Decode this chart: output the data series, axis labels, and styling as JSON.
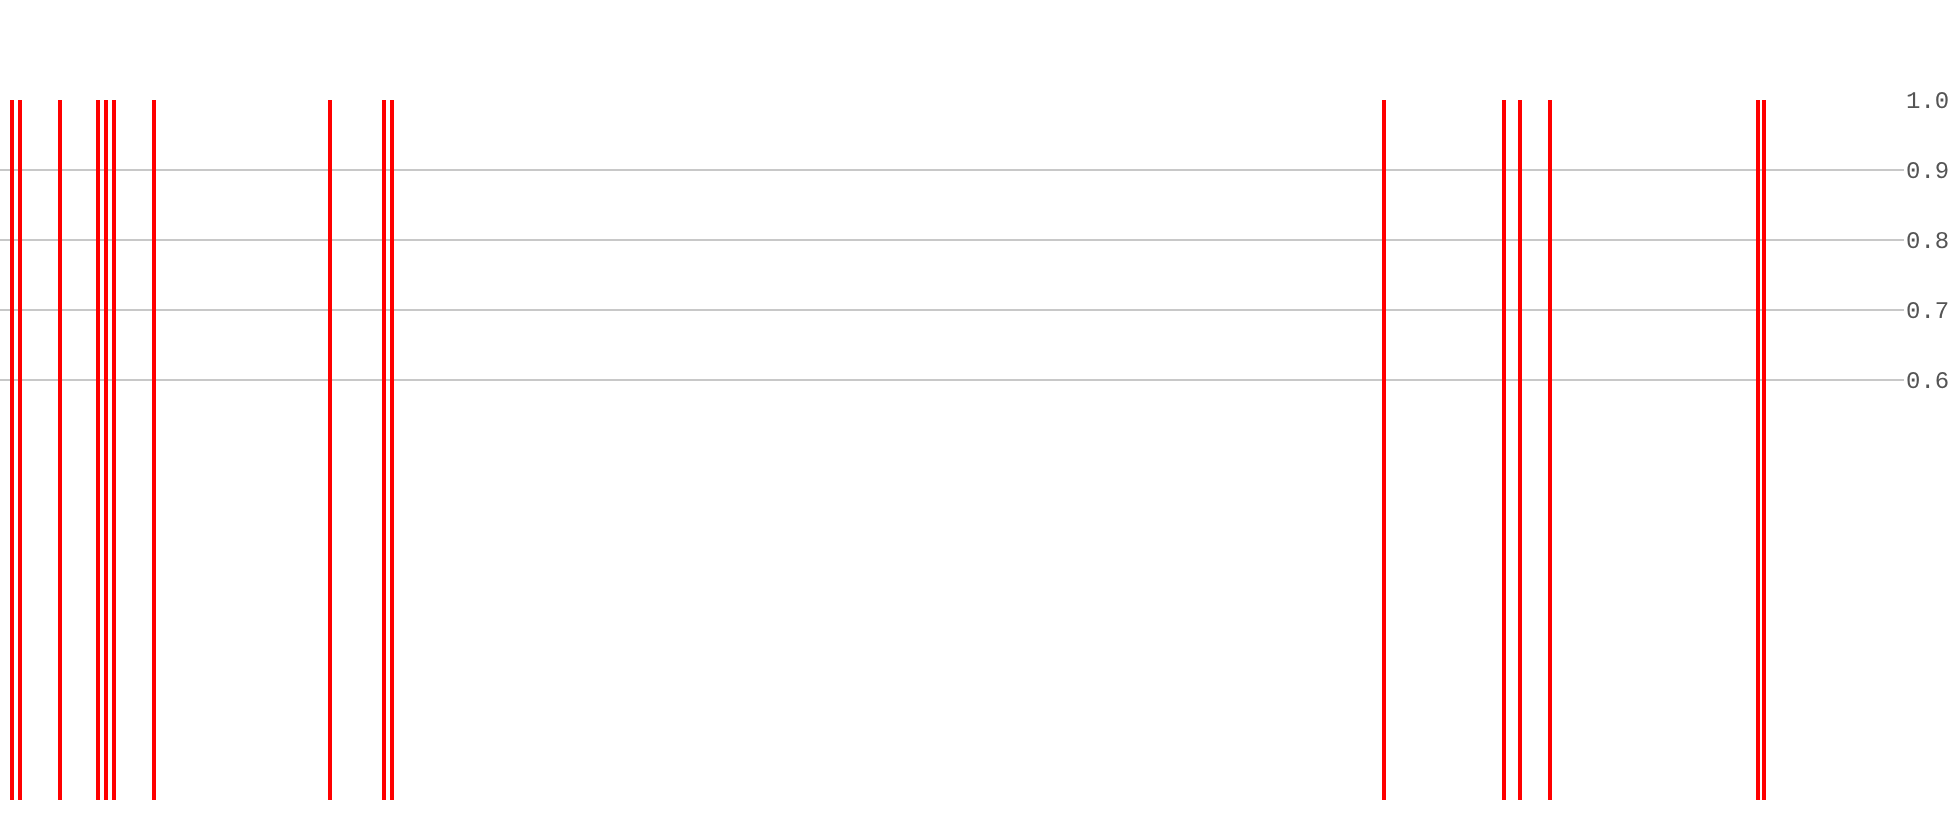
{
  "chart_data": {
    "type": "bar",
    "categories": [
      null,
      null,
      null,
      null,
      null,
      null,
      null,
      null,
      null,
      null,
      null,
      null,
      null,
      null,
      null,
      null,
      null,
      null,
      null,
      null,
      null,
      null,
      null,
      null,
      null,
      null,
      null,
      null,
      null,
      null,
      null,
      null,
      null,
      null,
      null,
      null,
      null,
      null,
      null,
      null,
      null,
      null,
      null,
      null,
      null,
      null,
      null,
      null,
      null,
      null,
      null,
      null,
      null,
      null,
      null,
      null,
      null,
      null,
      null,
      null,
      null,
      null,
      null,
      null,
      null,
      null,
      null,
      null,
      null,
      null,
      null,
      null,
      null,
      null,
      null,
      null,
      null,
      null,
      null,
      null,
      null,
      null,
      null,
      null,
      null,
      null,
      null,
      null,
      null,
      null,
      null,
      null,
      null,
      null,
      null,
      null,
      null,
      null,
      null,
      null,
      null,
      null,
      null,
      null,
      null,
      null,
      null,
      null,
      null,
      null,
      null,
      null,
      null,
      null,
      null,
      null,
      null,
      null,
      null,
      null,
      null,
      null,
      null,
      null,
      null,
      null,
      null,
      null,
      null,
      null,
      null,
      null,
      null,
      null,
      null,
      null,
      null,
      null,
      null,
      null,
      null,
      null,
      null,
      null,
      null,
      null,
      null,
      null,
      null,
      null,
      null,
      null,
      null,
      null,
      null,
      null,
      null,
      null,
      null,
      null,
      null,
      null,
      null,
      null,
      null,
      null,
      null,
      null,
      null,
      null,
      null,
      null,
      null,
      null,
      null,
      null,
      null,
      null,
      null,
      null,
      null,
      null,
      null,
      null,
      null,
      null,
      null,
      null,
      null,
      null,
      null,
      null,
      null,
      null,
      null,
      null,
      null,
      null,
      null,
      null,
      null,
      null,
      null,
      null,
      null,
      null,
      null,
      null,
      null,
      null,
      null,
      null,
      null,
      null,
      null,
      null,
      null,
      null,
      null,
      null,
      null,
      null,
      null,
      null,
      null,
      null,
      null,
      null,
      null,
      null,
      null,
      null,
      null,
      null,
      null,
      null,
      null,
      null,
      null,
      null
    ],
    "series": [
      {
        "color": "#ff0000",
        "values": [
          null,
          1,
          1,
          null,
          null,
          null,
          null,
          1,
          null,
          null,
          null,
          null,
          1,
          1,
          1,
          null,
          null,
          null,
          null,
          1,
          null,
          null,
          null,
          null,
          null,
          null,
          null,
          null,
          null,
          null,
          null,
          null,
          null,
          null,
          null,
          null,
          null,
          null,
          null,
          null,
          null,
          1,
          null,
          null,
          null,
          null,
          null,
          null,
          1,
          1,
          null,
          null,
          null,
          null,
          null,
          null,
          null,
          null,
          null,
          null,
          null,
          null,
          null,
          null,
          null,
          null,
          null,
          null,
          null,
          null,
          null,
          null,
          null,
          null,
          null,
          null,
          null,
          null,
          null,
          null,
          null,
          null,
          null,
          null,
          null,
          null,
          null,
          null,
          null,
          null,
          null,
          null,
          null,
          null,
          null,
          null,
          null,
          null,
          null,
          null,
          null,
          null,
          null,
          null,
          null,
          null,
          null,
          null,
          null,
          null,
          null,
          null,
          null,
          null,
          null,
          null,
          null,
          null,
          null,
          null,
          null,
          null,
          null,
          null,
          null,
          null,
          null,
          null,
          null,
          null,
          null,
          null,
          null,
          null,
          null,
          null,
          null,
          null,
          null,
          null,
          null,
          null,
          null,
          null,
          null,
          null,
          null,
          null,
          null,
          null,
          null,
          null,
          null,
          null,
          null,
          null,
          null,
          null,
          null,
          null,
          null,
          null,
          null,
          null,
          null,
          null,
          null,
          null,
          null,
          null,
          null,
          null,
          null,
          null,
          1,
          null,
          null,
          null,
          null,
          null,
          null,
          null,
          null,
          null,
          null,
          null,
          null,
          null,
          null,
          1,
          null,
          1,
          null,
          null,
          null,
          1,
          null,
          null,
          null,
          null,
          null,
          null,
          null,
          null,
          null,
          null,
          null,
          null,
          null,
          null,
          null,
          null,
          null,
          null,
          null,
          null,
          null,
          null,
          null,
          null,
          null,
          1,
          1,
          null,
          null,
          null,
          null,
          null,
          null,
          null,
          null,
          null,
          null,
          null,
          null,
          null,
          null,
          null,
          null,
          null
        ]
      }
    ],
    "ylim": [
      0,
      1
    ],
    "yticks": [
      0.6,
      0.7,
      0.8,
      0.9,
      {
        "value": 1,
        "label": "1.0"
      }
    ],
    "grid": "y",
    "tick_labels": "y"
  }
}
